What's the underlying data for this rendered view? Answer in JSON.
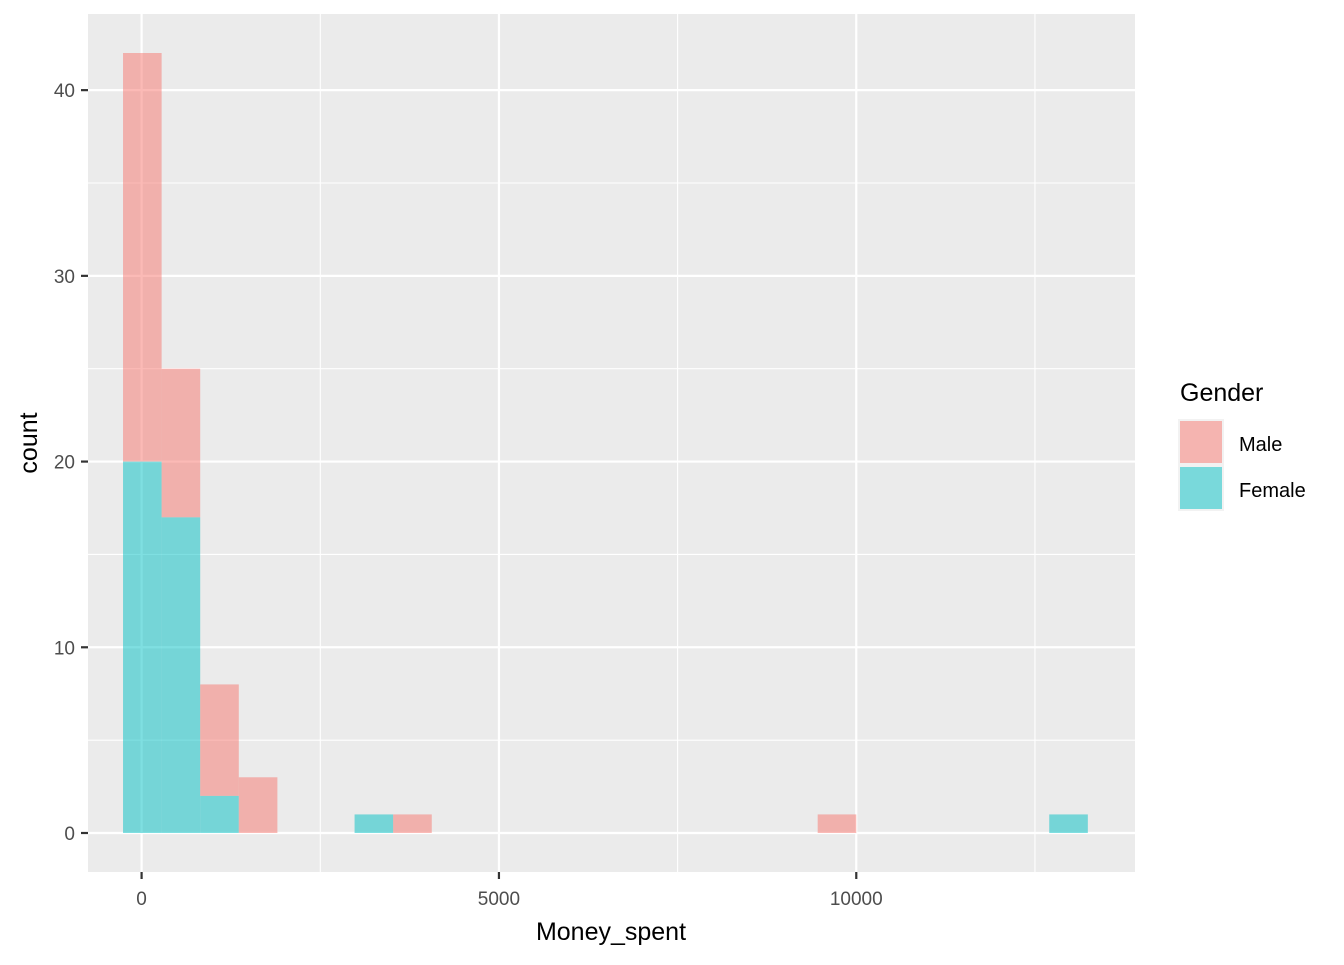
{
  "chart_data": {
    "type": "bar",
    "subtype": "histogram",
    "stacking": "stacked",
    "xlabel": "Money_spent",
    "ylabel": "count",
    "xlim": [
      -750,
      13900
    ],
    "ylim": [
      -2.1,
      44.1
    ],
    "x_ticks": [
      {
        "value": 0,
        "label": "0"
      },
      {
        "value": 5000,
        "label": "5000"
      },
      {
        "value": 10000,
        "label": "10000"
      }
    ],
    "x_minor_ticks": [
      2500,
      7500,
      12500
    ],
    "y_ticks": [
      {
        "value": 0,
        "label": "0"
      },
      {
        "value": 10,
        "label": "10"
      },
      {
        "value": 20,
        "label": "20"
      },
      {
        "value": 30,
        "label": "30"
      },
      {
        "value": 40,
        "label": "40"
      }
    ],
    "y_minor_ticks": [
      5,
      15,
      25,
      35
    ],
    "grid": true,
    "panel_background": "#EBEBEB",
    "bins": {
      "start": -260,
      "width": 540
    },
    "series": [
      {
        "name": "Male",
        "color": "#F8766D",
        "opacity": 0.5,
        "counts": [
          22,
          8,
          6,
          3,
          0,
          0,
          0,
          1,
          0,
          0,
          0,
          0,
          0,
          0,
          0,
          0,
          0,
          0,
          1,
          0,
          0,
          0,
          0,
          0,
          0
        ]
      },
      {
        "name": "Female",
        "color": "#00BFC4",
        "opacity": 0.5,
        "counts": [
          20,
          17,
          2,
          0,
          0,
          0,
          1,
          0,
          0,
          0,
          0,
          0,
          0,
          0,
          0,
          0,
          0,
          0,
          0,
          0,
          0,
          0,
          0,
          0,
          1
        ]
      }
    ],
    "legend": {
      "title": "Gender",
      "position": "right"
    }
  }
}
